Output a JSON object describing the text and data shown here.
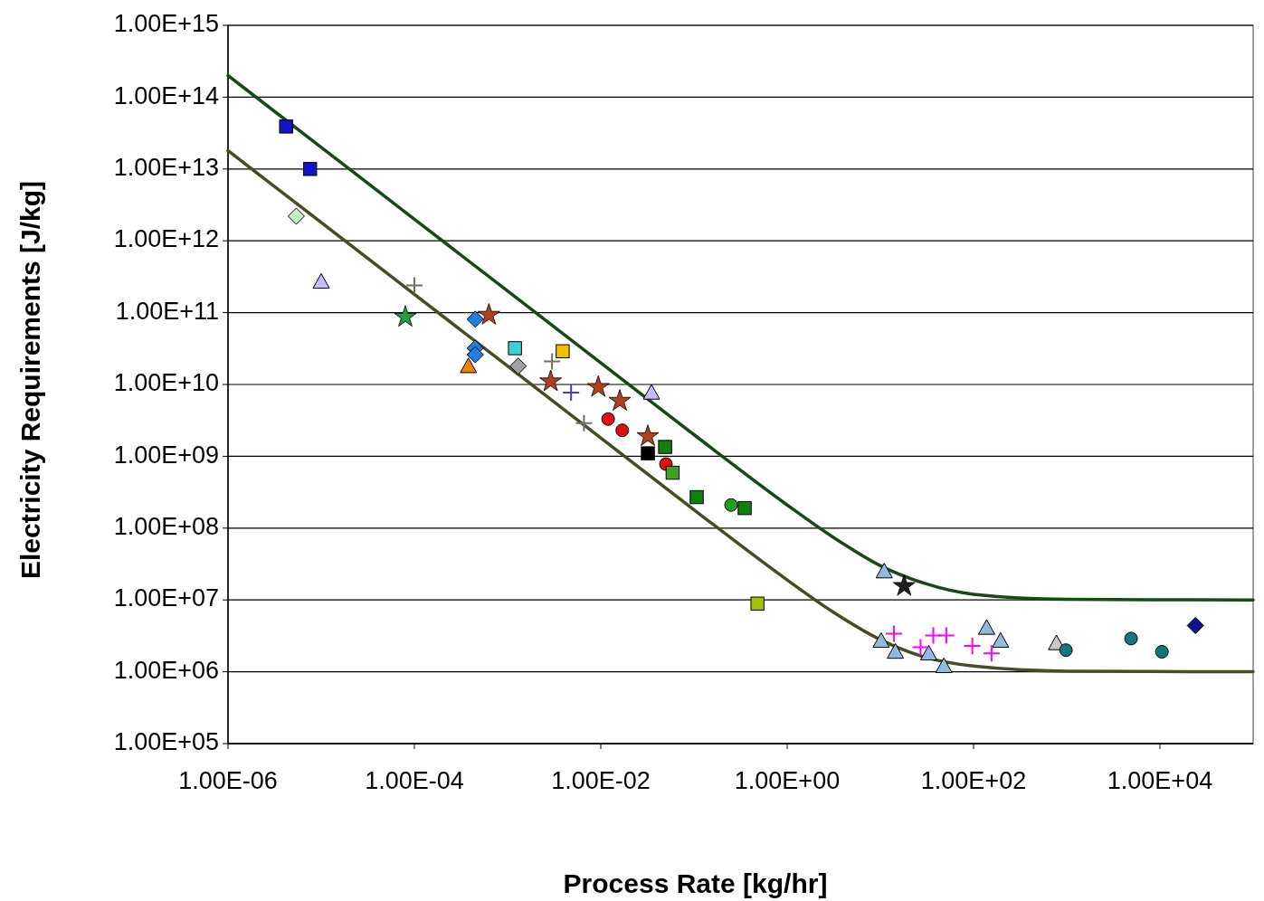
{
  "chart_data": {
    "type": "scatter",
    "xlabel": "Process Rate [kg/hr]",
    "ylabel": "Electricity Requirements [J/kg]",
    "log": "xy",
    "grid": "y",
    "xlim": [
      1e-06,
      100000.0
    ],
    "ylim": [
      100000.0,
      1000000000000000.0
    ],
    "xticks": [
      {
        "value": 1e-06,
        "label": "1.00E-06"
      },
      {
        "value": 0.0001,
        "label": "1.00E-04"
      },
      {
        "value": 0.01,
        "label": "1.00E-02"
      },
      {
        "value": 1,
        "label": "1.00E+00"
      },
      {
        "value": 100,
        "label": "1.00E+02"
      },
      {
        "value": 10000.0,
        "label": "1.00E+04"
      }
    ],
    "yticks": [
      {
        "value": 100000.0,
        "label": "1.00E+05"
      },
      {
        "value": 1000000.0,
        "label": "1.00E+06"
      },
      {
        "value": 10000000.0,
        "label": "1.00E+07"
      },
      {
        "value": 100000000.0,
        "label": "1.00E+08"
      },
      {
        "value": 1000000000.0,
        "label": "1.00E+09"
      },
      {
        "value": 10000000000.0,
        "label": "1.00E+10"
      },
      {
        "value": 100000000000.0,
        "label": "1.00E+11"
      },
      {
        "value": 1000000000000.0,
        "label": "1.00E+12"
      },
      {
        "value": 10000000000000.0,
        "label": "1.00E+13"
      },
      {
        "value": 100000000000000.0,
        "label": "1.00E+14"
      },
      {
        "value": 1000000000000000.0,
        "label": "1.00E+15"
      }
    ],
    "series": [
      {
        "type": "line",
        "color": "#154a15",
        "marker": "none",
        "x": [
          1e-06,
          1e-05,
          0.0001,
          0.001,
          0.01,
          0.1,
          1,
          3,
          10,
          30,
          100,
          1000,
          100000.0
        ],
        "values": [
          200000000000000.0,
          20000000000000.0,
          2000000000000.0,
          200000000000.0,
          20000000000.0,
          2000000000.0,
          210000000.0,
          77000000.0,
          30000000.0,
          17000000.0,
          12000000.0,
          10200000.0,
          10000000.0
        ]
      },
      {
        "type": "line",
        "color": "#4a4a25",
        "marker": "none",
        "x": [
          1e-06,
          1e-05,
          0.0001,
          0.001,
          0.01,
          0.1,
          1,
          3,
          10,
          30,
          100,
          1000,
          100000.0
        ],
        "values": [
          18000000000000.0,
          1800000000000.0,
          180000000000.0,
          18000000000.0,
          1800000000.0,
          180000000.0,
          19000000.0,
          7000000.0,
          2800000.0,
          1600000.0,
          1200000.0,
          1020000.0,
          1000000.0
        ]
      },
      {
        "color": "#1414c8",
        "marker": "square",
        "x": [
          4.2e-06,
          7.6e-06
        ],
        "values": [
          39000000000000.0,
          10000000000000.0
        ]
      },
      {
        "color": "#c8f0c8",
        "marker": "diamond",
        "x": [
          5.4e-06
        ],
        "values": [
          2200000000000.0
        ]
      },
      {
        "color": "#c8b8ff",
        "marker": "triangle",
        "x": [
          1e-05,
          0.035
        ],
        "values": [
          270000000000.0,
          7700000000.0
        ]
      },
      {
        "color": "#707060",
        "marker": "cross",
        "x": [
          0.0001,
          0.003,
          0.0066
        ],
        "values": [
          240000000000.0,
          21000000000.0,
          2900000000.0
        ]
      },
      {
        "color": "#20a040",
        "marker": "star",
        "x": [
          8e-05
        ],
        "values": [
          87000000000.0
        ]
      },
      {
        "color": "#2080e0",
        "marker": "diamond",
        "x": [
          0.00045,
          0.00045,
          0.00045
        ],
        "values": [
          81000000000.0,
          32000000000.0,
          26000000000.0
        ]
      },
      {
        "color": "#f08000",
        "marker": "triangle",
        "x": [
          0.00038
        ],
        "values": [
          18000000000.0
        ]
      },
      {
        "color": "#b04020",
        "marker": "star",
        "x": [
          0.00063,
          0.0029,
          0.0094,
          0.016,
          0.032
        ],
        "values": [
          93000000000.0,
          11000000000.0,
          9200000000.0,
          5900000000.0,
          1900000000.0
        ]
      },
      {
        "color": "#40d0d0",
        "marker": "square",
        "x": [
          0.0012
        ],
        "values": [
          32000000000.0
        ]
      },
      {
        "color": "#a0a0a0",
        "marker": "diamond",
        "x": [
          0.0013
        ],
        "values": [
          18000000000.0
        ]
      },
      {
        "color": "#f0c000",
        "marker": "square",
        "x": [
          0.0039
        ],
        "values": [
          29000000000.0
        ]
      },
      {
        "color": "#4040c0",
        "marker": "cross",
        "x": [
          0.0048
        ],
        "values": [
          7700000000.0
        ]
      },
      {
        "color": "#e01010",
        "marker": "circle",
        "x": [
          0.012,
          0.017,
          0.05
        ],
        "values": [
          3300000000.0,
          2300000000.0,
          780000000.0
        ]
      },
      {
        "color": "#000000",
        "marker": "square",
        "x": [
          0.032
        ],
        "values": [
          1100000000.0
        ]
      },
      {
        "color": "#108010",
        "marker": "square",
        "x": [
          0.049,
          0.107,
          0.35
        ],
        "values": [
          1350000000.0,
          270000000.0,
          190000000.0
        ]
      },
      {
        "color": "#40a020",
        "marker": "square",
        "x": [
          0.059
        ],
        "values": [
          590000000.0
        ]
      },
      {
        "color": "#20a020",
        "marker": "circle",
        "x": [
          0.25
        ],
        "values": [
          210000000.0
        ]
      },
      {
        "color": "#a0c000",
        "marker": "square",
        "x": [
          0.48
        ],
        "values": [
          8900000.0
        ]
      },
      {
        "color": "#90b8e0",
        "marker": "triangle",
        "x": [
          11,
          10.2,
          14.5,
          33,
          48,
          138,
          195
        ],
        "values": [
          25000000.0,
          2700000.0,
          1900000.0,
          1800000.0,
          1200000.0,
          4100000.0,
          2700000.0
        ]
      },
      {
        "color": "#202020",
        "marker": "star",
        "x": [
          18
        ],
        "values": [
          15600000.0
        ]
      },
      {
        "color": "#ff00ff",
        "marker": "cross",
        "x": [
          14,
          27,
          37,
          51,
          97,
          156
        ],
        "values": [
          3400000.0,
          2200000.0,
          3200000.0,
          3200000.0,
          2300000.0,
          1800000.0
        ]
      },
      {
        "color": "#c8c8c8",
        "marker": "triangle",
        "x": [
          776
        ],
        "values": [
          2500000.0
        ]
      },
      {
        "color": "#107878",
        "marker": "circle",
        "x": [
          980,
          4900,
          10500.0
        ],
        "values": [
          2000000.0,
          2900000.0,
          1900000.0
        ]
      },
      {
        "color": "#101090",
        "marker": "diamond",
        "x": [
          24000.0
        ],
        "values": [
          4400000.0
        ]
      }
    ]
  }
}
